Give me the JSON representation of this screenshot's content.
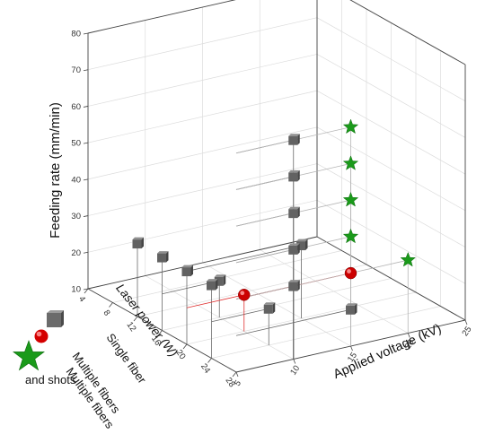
{
  "chart_data": {
    "type": "scatter",
    "projection": "3d",
    "axes": {
      "x": {
        "label": "Applied voltage (kV)",
        "ticks": [
          "5",
          "10",
          "15",
          "20",
          "25"
        ],
        "range": [
          5,
          25
        ]
      },
      "y": {
        "label": "Laser power (W)",
        "ticks": [
          "4",
          "8",
          "12",
          "16",
          "20",
          "24",
          "28"
        ],
        "range": [
          4,
          28
        ]
      },
      "z": {
        "label": "Feeding rate (mm/min)",
        "ticks": [
          "10",
          "20",
          "30",
          "40",
          "50",
          "60",
          "70",
          "80"
        ],
        "range": [
          10,
          80
        ]
      }
    },
    "grid": true,
    "legend_position": "bottom-left",
    "series": [
      {
        "name": "Single fiber",
        "marker": "cube",
        "color": "#5f5f5f",
        "points": [
          {
            "x": 5,
            "y": 12,
            "z": 30
          },
          {
            "x": 5,
            "y": 16,
            "z": 30
          },
          {
            "x": 5,
            "y": 20,
            "z": 30
          },
          {
            "x": 5,
            "y": 24,
            "z": 30
          },
          {
            "x": 10,
            "y": 16,
            "z": 20
          },
          {
            "x": 10,
            "y": 24,
            "z": 20
          },
          {
            "x": 10,
            "y": 28,
            "z": 30
          },
          {
            "x": 10,
            "y": 28,
            "z": 40
          },
          {
            "x": 10,
            "y": 28,
            "z": 50
          },
          {
            "x": 10,
            "y": 28,
            "z": 60
          },
          {
            "x": 10,
            "y": 28,
            "z": 70
          },
          {
            "x": 15,
            "y": 20,
            "z": 30
          },
          {
            "x": 15,
            "y": 28,
            "z": 20
          }
        ]
      },
      {
        "name": "Multiple fibers",
        "marker": "sphere",
        "color": "#d40000",
        "points": [
          {
            "x": 10,
            "y": 20,
            "z": 20
          },
          {
            "x": 15,
            "y": 28,
            "z": 30
          }
        ]
      },
      {
        "name": "Multiple fibers and shots",
        "marker": "star",
        "color": "#1a9a1a",
        "points": [
          {
            "x": 20,
            "y": 28,
            "z": 30
          },
          {
            "x": 15,
            "y": 28,
            "z": 40
          },
          {
            "x": 15,
            "y": 28,
            "z": 50
          },
          {
            "x": 15,
            "y": 28,
            "z": 60
          },
          {
            "x": 15,
            "y": 28,
            "z": 70
          }
        ]
      }
    ]
  },
  "legend": {
    "items": [
      {
        "label": "Single fiber",
        "marker": "cube",
        "color": "#5f5f5f"
      },
      {
        "label": "Multiple fibers",
        "marker": "sphere",
        "color": "#d40000"
      },
      {
        "label_lines": [
          "Multiple fibers",
          "and shots"
        ],
        "marker": "star",
        "color": "#1a9a1a"
      }
    ]
  }
}
